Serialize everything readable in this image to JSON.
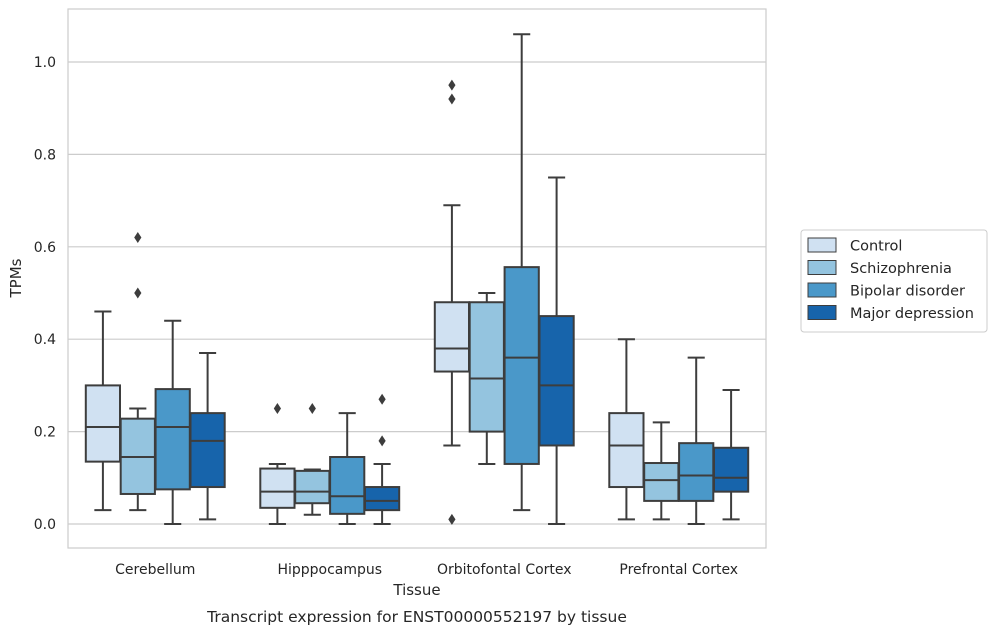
{
  "chart_data": {
    "type": "box",
    "title": "",
    "caption": "Transcript expression for ENST00000552197 by tissue",
    "xlabel": "Tissue",
    "ylabel": "TPMs",
    "ylim": [
      -0.05,
      1.12
    ],
    "yticks": [
      0.0,
      0.2,
      0.4,
      0.6,
      0.8,
      1.0
    ],
    "ytick_labels": [
      "0.0",
      "0.2",
      "0.4",
      "0.6",
      "0.8",
      "1.0"
    ],
    "grid": "horizontal",
    "legend_position": "right-outside",
    "categories": [
      "Cerebellum",
      "Hipppocampus",
      "Orbitofontal Cortex",
      "Prefrontal Cortex"
    ],
    "series": [
      {
        "name": "Control",
        "color": "#d0e1f2",
        "boxes": [
          {
            "whislo": 0.03,
            "q1": 0.135,
            "med": 0.21,
            "q3": 0.3,
            "whishi": 0.46,
            "fliers": []
          },
          {
            "whislo": 0.0,
            "q1": 0.035,
            "med": 0.07,
            "q3": 0.12,
            "whishi": 0.13,
            "fliers": [
              0.25
            ]
          },
          {
            "whislo": 0.17,
            "q1": 0.33,
            "med": 0.38,
            "q3": 0.48,
            "whishi": 0.69,
            "fliers": [
              0.01,
              0.92,
              0.95
            ]
          },
          {
            "whislo": 0.01,
            "q1": 0.08,
            "med": 0.17,
            "q3": 0.24,
            "whishi": 0.4,
            "fliers": []
          }
        ]
      },
      {
        "name": "Schizophrenia",
        "color": "#94c4df",
        "boxes": [
          {
            "whislo": 0.03,
            "q1": 0.065,
            "med": 0.145,
            "q3": 0.228,
            "whishi": 0.25,
            "fliers": [
              0.5,
              0.62
            ]
          },
          {
            "whislo": 0.02,
            "q1": 0.045,
            "med": 0.07,
            "q3": 0.115,
            "whishi": 0.118,
            "fliers": [
              0.25
            ]
          },
          {
            "whislo": 0.13,
            "q1": 0.2,
            "med": 0.315,
            "q3": 0.48,
            "whishi": 0.5,
            "fliers": []
          },
          {
            "whislo": 0.01,
            "q1": 0.05,
            "med": 0.095,
            "q3": 0.132,
            "whishi": 0.22,
            "fliers": []
          }
        ]
      },
      {
        "name": "Bipolar disorder",
        "color": "#4a98c9",
        "boxes": [
          {
            "whislo": 0.0,
            "q1": 0.075,
            "med": 0.21,
            "q3": 0.292,
            "whishi": 0.44,
            "fliers": []
          },
          {
            "whislo": 0.0,
            "q1": 0.022,
            "med": 0.06,
            "q3": 0.145,
            "whishi": 0.24,
            "fliers": []
          },
          {
            "whislo": 0.03,
            "q1": 0.13,
            "med": 0.36,
            "q3": 0.556,
            "whishi": 1.06,
            "fliers": []
          },
          {
            "whislo": 0.0,
            "q1": 0.05,
            "med": 0.105,
            "q3": 0.175,
            "whishi": 0.36,
            "fliers": []
          }
        ]
      },
      {
        "name": "Major depression",
        "color": "#1764ab",
        "boxes": [
          {
            "whislo": 0.01,
            "q1": 0.08,
            "med": 0.18,
            "q3": 0.24,
            "whishi": 0.37,
            "fliers": []
          },
          {
            "whislo": 0.0,
            "q1": 0.03,
            "med": 0.05,
            "q3": 0.08,
            "whishi": 0.13,
            "fliers": [
              0.18,
              0.27
            ]
          },
          {
            "whislo": 0.0,
            "q1": 0.17,
            "med": 0.3,
            "q3": 0.45,
            "whishi": 0.75,
            "fliers": []
          },
          {
            "whislo": 0.01,
            "q1": 0.07,
            "med": 0.1,
            "q3": 0.165,
            "whishi": 0.29,
            "fliers": []
          }
        ]
      }
    ]
  }
}
